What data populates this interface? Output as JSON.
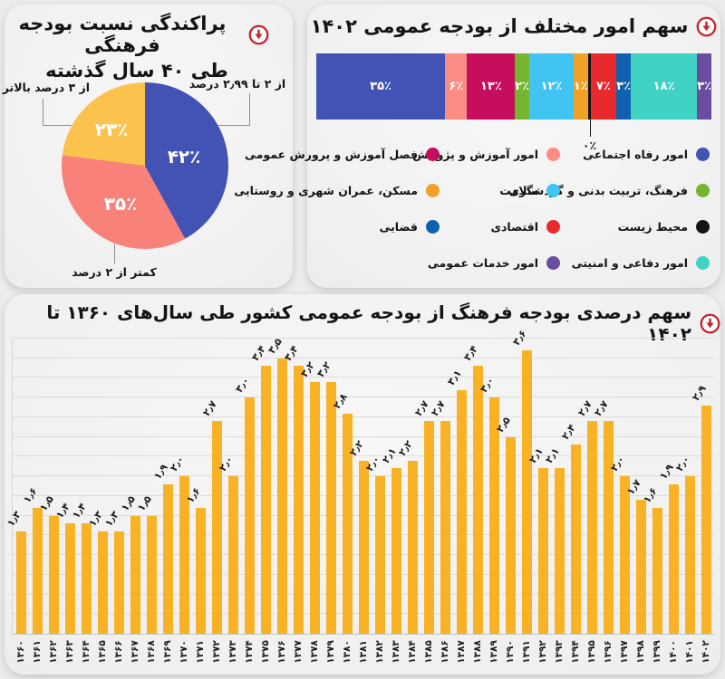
{
  "accent_red": "#c9232d",
  "pie_card": {
    "title_line1": "پراکندگی نسبت بودجه فرهنگی",
    "title_line2": "طی ۴۰ سال گذشته"
  },
  "budget_card": {
    "title": "سهم امور مختلف از بودجه عمومی ۱۴۰۲"
  },
  "trend_card": {
    "title": "سهم درصدی بودجه فرهنگ از بودجه عمومی کشور طی سال‌های ۱۳۶۰ تا ۱۴۰۲"
  },
  "chart_data": [
    {
      "type": "pie",
      "title": "پراکندگی نسبت بودجه فرهنگی طی ۴۰ سال گذشته",
      "start_angle_deg": 0,
      "direction": "clockwise",
      "slices": [
        {
          "label": "از ۲ تا ۲٫۹۹ درصد",
          "value": 42,
          "display": "۴۲٪",
          "color": "#4353b4"
        },
        {
          "label": "کمتر از ۲ درصد",
          "value": 35,
          "display": "۳۵٪",
          "color": "#f8817a"
        },
        {
          "label": "از ۳ درصد بالاتر",
          "value": 23,
          "display": "۲۳٪",
          "color": "#fcc24e"
        }
      ]
    },
    {
      "type": "bar",
      "subtype": "stacked-horizontal",
      "title": "سهم امور مختلف از بودجه عمومی ۱۴۰۲",
      "segments": [
        {
          "label": "امور رفاه اجتماعی",
          "value": 35,
          "display": "۳۵٪",
          "color": "#4353b4"
        },
        {
          "label": "امور آموزش و پژوهش",
          "value": 6,
          "display": "۶٪",
          "color": "#fb8d85"
        },
        {
          "label": "فصل آموزش و پرورش عمومی",
          "value": 13,
          "display": "۱۳٪",
          "color": "#c60f5c"
        },
        {
          "label": "فرهنگ، تربیت بدنی و گردشگری",
          "value": 2,
          "display": "۲٪",
          "color": "#74b62f"
        },
        {
          "label": "سلامت",
          "value": 12,
          "display": "۱۲٪",
          "color": "#41c4f1"
        },
        {
          "label": "مسکن، عمران شهری و روستایی",
          "value": 1,
          "display": "۱٪",
          "color": "#f0a228"
        },
        {
          "label": "محیط زیست",
          "value": 0,
          "display": "۰٪",
          "color": "#141414",
          "callout": true
        },
        {
          "label": "اقتصادی",
          "value": 7,
          "display": "۷٪",
          "color": "#e8292e"
        },
        {
          "label": "قضایی",
          "value": 3,
          "display": "۳٪",
          "color": "#0f60ae"
        },
        {
          "label": "امور دفاعی و امنیتی",
          "value": 18,
          "display": "۱۸٪",
          "color": "#40d2c3"
        },
        {
          "label": "امور خدمات عمومی",
          "value": 3,
          "display": "۳٪",
          "color": "#6a4d9f"
        }
      ],
      "legend_position": "below",
      "legend_columns": [
        [
          {
            "label": "امور رفاه اجتماعی",
            "color": "#4353b4"
          },
          {
            "label": "فرهنگ، تربیت بدنی و گردشگری",
            "color": "#74b62f"
          },
          {
            "label": "محیط زیست",
            "color": "#141414"
          },
          {
            "label": "امور دفاعی و امنیتی",
            "color": "#40d2c3"
          }
        ],
        [
          {
            "label": "امور آموزش و پژوهش",
            "color": "#fb8d85"
          },
          {
            "label": "سلامت",
            "color": "#41c4f1"
          },
          {
            "label": "اقتصادی",
            "color": "#e8292e"
          },
          {
            "label": "امور خدمات عمومی",
            "color": "#6a4d9f"
          }
        ],
        [
          {
            "label": "فصل آموزش و پرورش عمومی",
            "color": "#c60f5c"
          },
          {
            "label": "مسکن، عمران شهری و روستایی",
            "color": "#f0a228"
          },
          {
            "label": "قضایی",
            "color": "#0f60ae"
          }
        ]
      ]
    },
    {
      "type": "bar",
      "title": "سهم درصدی بودجه فرهنگ از بودجه عمومی کشور طی سال‌های ۱۳۶۰ تا ۱۴۰۲",
      "bar_color": "#f7b226",
      "ylim": [
        0,
        3.75
      ],
      "grid_step": 0.25,
      "grid": "horizontal",
      "categories": [
        "۱۳۶۰",
        "۱۳۶۱",
        "۱۳۶۲",
        "۱۳۶۳",
        "۱۳۶۴",
        "۱۳۶۵",
        "۱۳۶۶",
        "۱۳۶۷",
        "۱۳۶۸",
        "۱۳۶۹",
        "۱۳۷۰",
        "۱۳۷۱",
        "۱۳۷۲",
        "۱۳۷۳",
        "۱۳۷۴",
        "۱۳۷۵",
        "۱۳۷۶",
        "۱۳۷۷",
        "۱۳۷۸",
        "۱۳۷۹",
        "۱۳۸۰",
        "۱۳۸۱",
        "۱۳۸۲",
        "۱۳۸۳",
        "۱۳۸۴",
        "۱۳۸۵",
        "۱۳۸۶",
        "۱۳۸۷",
        "۱۳۸۸",
        "۱۳۸۹",
        "۱۳۹۰",
        "۱۳۹۱",
        "۱۳۹۲",
        "۱۳۹۳",
        "۱۳۹۴",
        "۱۳۹۵",
        "۱۳۹۶",
        "۱۳۹۷",
        "۱۳۹۸",
        "۱۳۹۹",
        "۱۴۰۰",
        "۱۴۰۱",
        "۱۴۰۲"
      ],
      "values": [
        1.3,
        1.6,
        1.5,
        1.4,
        1.4,
        1.3,
        1.3,
        1.5,
        1.5,
        1.9,
        2.0,
        1.6,
        2.7,
        2.0,
        3.0,
        3.4,
        3.5,
        3.4,
        3.2,
        3.2,
        2.8,
        2.2,
        2.0,
        2.1,
        2.2,
        2.7,
        2.7,
        3.1,
        3.4,
        3.0,
        2.5,
        3.6,
        2.1,
        2.1,
        2.4,
        2.7,
        2.7,
        2.0,
        1.7,
        1.6,
        1.9,
        2.0,
        2.9
      ],
      "labels": [
        "۱٫۳",
        "۱٫۶",
        "۱٫۵",
        "۱٫۴",
        "۱٫۴",
        "۱٫۳",
        "۱٫۳",
        "۱٫۵",
        "۱٫۵",
        "۱٫۹",
        "۲٫۰",
        "۱٫۶",
        "۲٫۷",
        "۲٫۰",
        "۳٫۰",
        "۳٫۴",
        "۳٫۵",
        "۳٫۴",
        "۳٫۲",
        "۳٫۲",
        "۲٫۸",
        "۲٫۲",
        "۲٫۰",
        "۲٫۱",
        "۲٫۲",
        "۲٫۷",
        "۲٫۷",
        "۳٫۱",
        "۳٫۴",
        "۳٫۰",
        "۲٫۵",
        "۳٫۶",
        "۲٫۱",
        "۲٫۱",
        "۲٫۴",
        "۲٫۷",
        "۲٫۷",
        "۲٫۰",
        "۱٫۷",
        "۱٫۶",
        "۱٫۹",
        "۲٫۰",
        "۲٫۹"
      ]
    }
  ]
}
